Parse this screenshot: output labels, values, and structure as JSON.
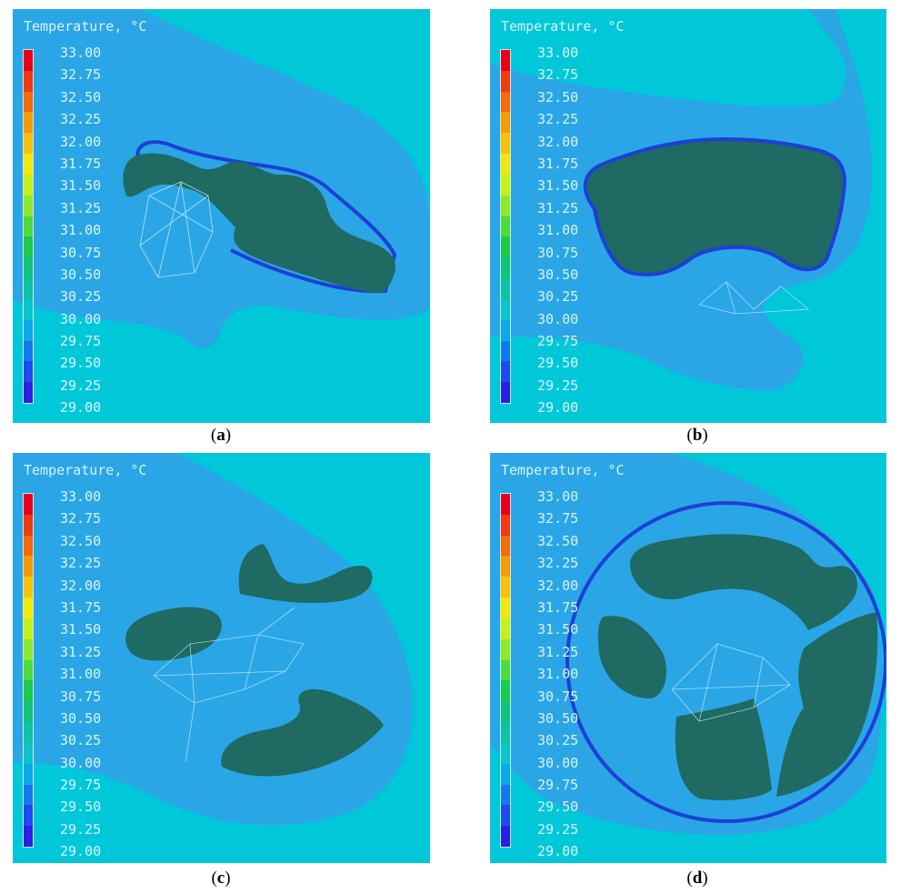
{
  "panels": [
    {
      "id": "a",
      "legend_title": "Temperature, °C",
      "caption_letter": "a"
    },
    {
      "id": "b",
      "legend_title": "Temperature, °C",
      "caption_letter": "b"
    },
    {
      "id": "c",
      "legend_title": "Temperature, °C",
      "caption_letter": "c"
    },
    {
      "id": "d",
      "legend_title": "Temperature, °C",
      "caption_letter": "d"
    }
  ],
  "legend_ticks": [
    "33.00",
    "32.75",
    "32.50",
    "32.25",
    "32.00",
    "31.75",
    "31.50",
    "31.25",
    "31.00",
    "30.75",
    "30.50",
    "30.25",
    "30.00",
    "29.75",
    "29.50",
    "29.25",
    "29.00"
  ],
  "colorbar_colors": [
    "#e8001a",
    "#f03a10",
    "#f56a0b",
    "#f79a08",
    "#f7c20a",
    "#f3e80c",
    "#c8ef18",
    "#8fe82c",
    "#4fdc3a",
    "#1ec94c",
    "#13c27a",
    "#0fc2a5",
    "#0cc4cf",
    "#0ca8e8",
    "#1478ef",
    "#1e4bef",
    "#2a1fe6"
  ],
  "colors": {
    "background": "#00c8d9",
    "cool_zone": "#2aa6e6",
    "cold_edge": "#1d3fd6",
    "object": "#1f6a63"
  }
}
